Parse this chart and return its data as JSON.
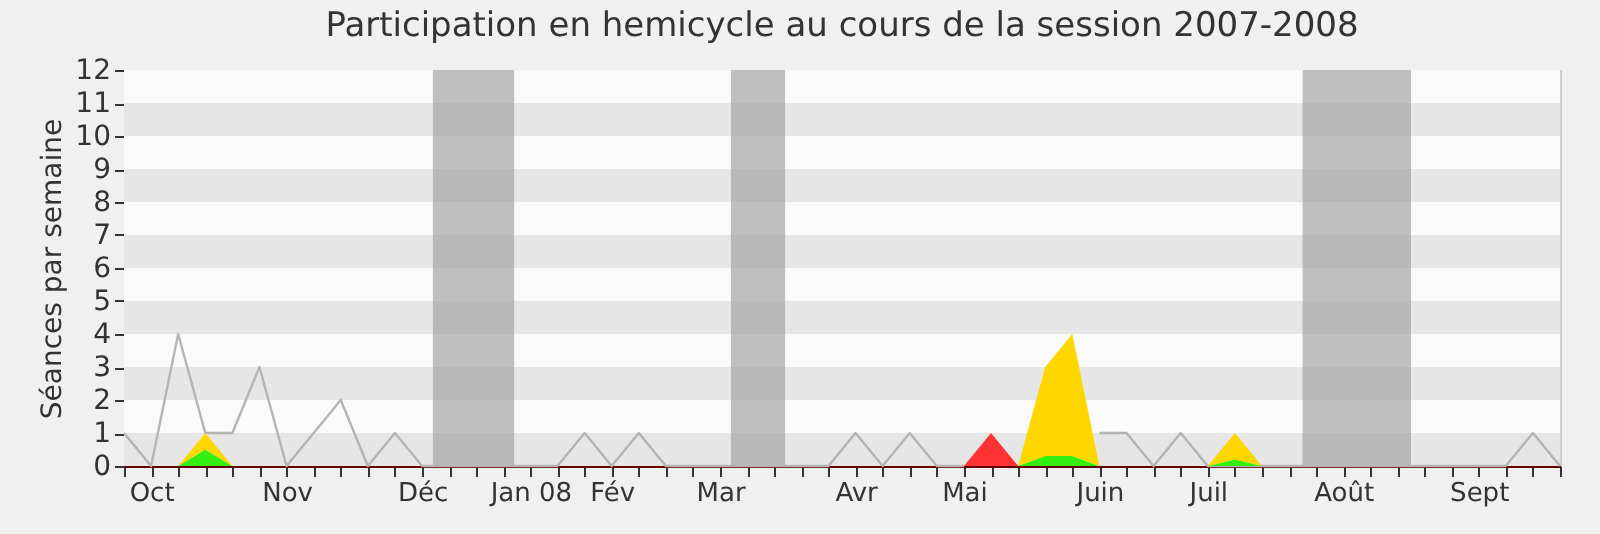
{
  "chart_data": {
    "type": "area",
    "stacked": true,
    "title": "Participation en hemicycle au cours de la session 2007-2008",
    "ylabel": "Séances par semaine",
    "categories": [
      null,
      "Oct",
      null,
      null,
      null,
      null,
      "Nov",
      null,
      null,
      null,
      null,
      "Déc",
      null,
      null,
      null,
      "Jan 08",
      null,
      null,
      "Fév",
      null,
      null,
      null,
      "Mar",
      null,
      null,
      null,
      null,
      "Avr",
      null,
      null,
      null,
      "Mai",
      null,
      null,
      null,
      null,
      "Juin",
      null,
      null,
      null,
      "Juil",
      null,
      null,
      null,
      null,
      "Août",
      null,
      null,
      null,
      null,
      "Sept",
      null,
      null,
      null
    ],
    "ylim": [
      0,
      12
    ],
    "yticks": [
      0,
      1,
      2,
      3,
      4,
      5,
      6,
      7,
      8,
      9,
      10,
      11,
      12
    ],
    "grid": "y",
    "series": [
      {
        "type": "line",
        "color": "#b4b4b4",
        "values": [
          1,
          0,
          4,
          1,
          1,
          3,
          0,
          1,
          2,
          0,
          1,
          0,
          0,
          0,
          0,
          0,
          0,
          1,
          0,
          1,
          0,
          0,
          0,
          0,
          0,
          0,
          0,
          1,
          0,
          1,
          0,
          0,
          null,
          null,
          null,
          null,
          1,
          1,
          0,
          1,
          0,
          0,
          0,
          0,
          0,
          0,
          0,
          0,
          0,
          0,
          0,
          0,
          1,
          0
        ]
      },
      {
        "color": "#33ee11",
        "values": [
          0,
          0,
          0,
          0.5,
          0,
          0,
          0,
          0,
          0,
          0,
          0,
          0,
          0,
          0,
          0,
          0,
          0,
          0,
          0,
          0,
          0,
          0,
          0,
          0,
          0,
          0,
          0,
          0,
          0,
          0,
          0,
          0,
          0,
          0,
          0.3,
          0.3,
          0,
          0,
          0,
          0,
          0,
          0.2,
          0,
          0,
          0,
          0,
          0,
          0,
          0,
          0,
          0,
          0,
          0,
          0
        ]
      },
      {
        "color": "#ffd700",
        "values": [
          0,
          0,
          0,
          0.5,
          0,
          0,
          0,
          0,
          0,
          0,
          0,
          0,
          0,
          0,
          0,
          0,
          0,
          0,
          0,
          0,
          0,
          0,
          0,
          0,
          0,
          0,
          0,
          0,
          0,
          0,
          0,
          0,
          0,
          0,
          2.7,
          3.7,
          0,
          0,
          0,
          0,
          0,
          0.8,
          0,
          0,
          0,
          0,
          0,
          0,
          0,
          0,
          0,
          0,
          0,
          0
        ]
      },
      {
        "color": "#ff3333",
        "values": [
          null,
          null,
          null,
          null,
          null,
          null,
          null,
          null,
          null,
          null,
          null,
          null,
          null,
          null,
          null,
          null,
          null,
          null,
          null,
          null,
          null,
          null,
          null,
          null,
          null,
          null,
          null,
          null,
          null,
          null,
          null,
          0,
          1,
          0,
          null,
          null,
          null,
          null,
          null,
          null,
          null,
          null,
          null,
          null,
          null,
          null,
          null,
          null,
          null,
          null,
          null,
          null,
          null,
          null
        ]
      }
    ]
  }
}
